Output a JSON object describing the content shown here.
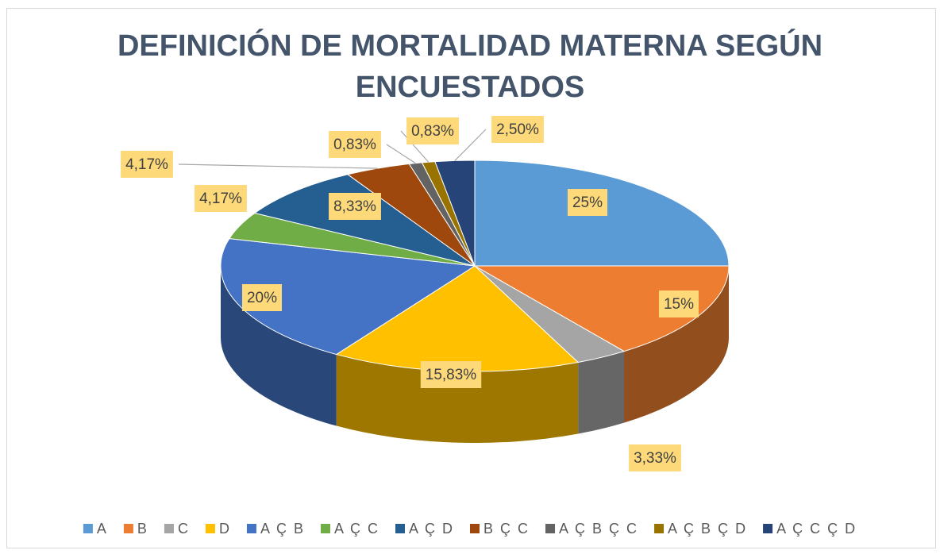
{
  "chart_data": {
    "type": "pie",
    "title": "DEFINICIÓN DE MORTALIDAD MATERNA SEGÚN ENCUESTADOS",
    "categories": [
      "A",
      "B",
      "C",
      "D",
      "A Ç B",
      "A Ç C",
      "A Ç D",
      "B Ç C",
      "A Ç B Ç C",
      "A Ç B Ç D",
      "A Ç C Ç D"
    ],
    "values": [
      25,
      15,
      3.33,
      15.83,
      20,
      4.17,
      8.33,
      4.17,
      0.83,
      0.83,
      2.5
    ],
    "value_labels": [
      "25%",
      "15%",
      "3,33%",
      "15,83%",
      "20%",
      "4,17%",
      "8,33%",
      "4,17%",
      "0,83%",
      "0,83%",
      "2,50%"
    ],
    "colors": [
      "#5b9bd5",
      "#ed7d31",
      "#a5a5a5",
      "#ffc000",
      "#4472c4",
      "#70ad47",
      "#255e91",
      "#9e480e",
      "#636363",
      "#997300",
      "#264478"
    ],
    "legend": "bottom"
  }
}
